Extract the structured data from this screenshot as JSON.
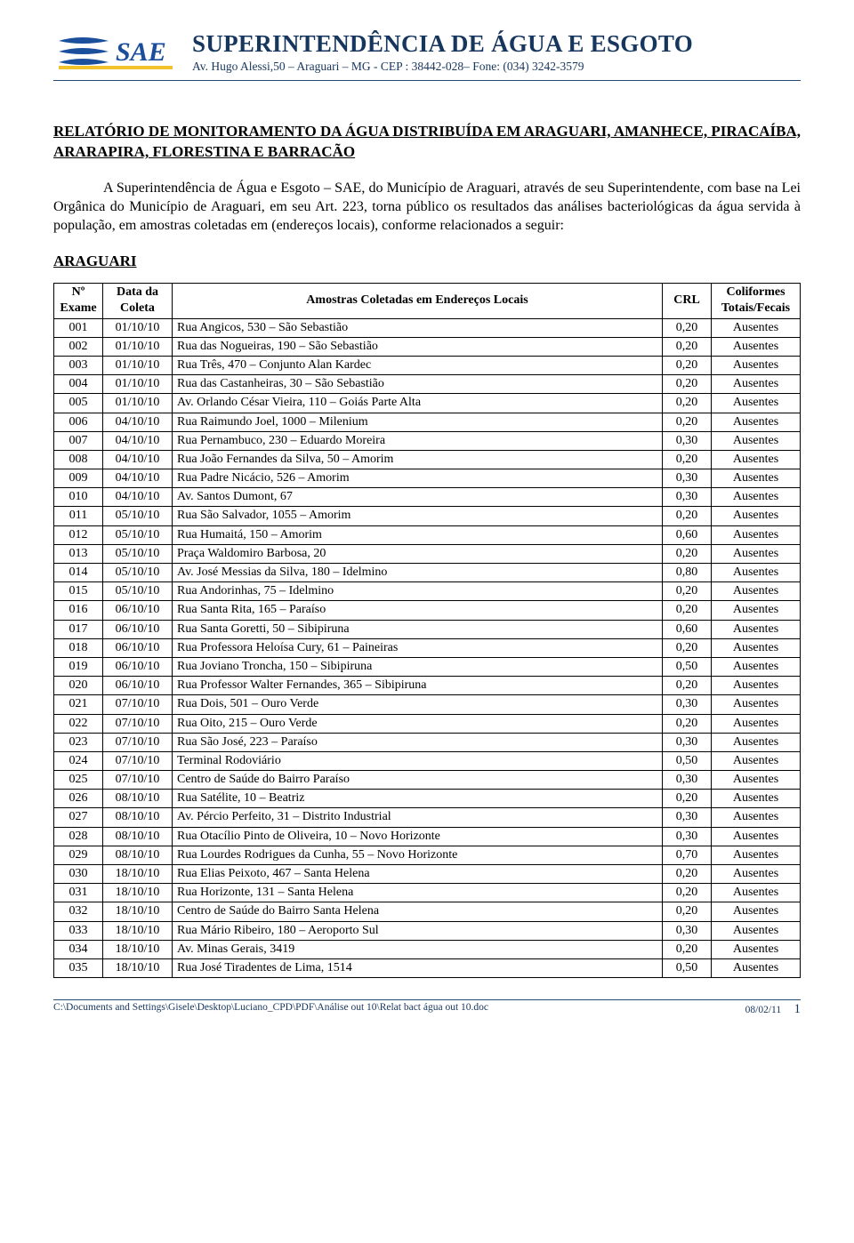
{
  "header": {
    "org_title": "SUPERINTENDÊNCIA DE ÁGUA E ESGOTO",
    "org_addr": "Av. Hugo Alessi,50 – Araguari – MG  -  CEP : 38442-028– Fone: (034) 3242-3579",
    "logo_text": "SAE",
    "logo_colors": {
      "blue": "#1b4f9c",
      "yellow": "#f3c22b",
      "white": "#ffffff"
    }
  },
  "report_title": "RELATÓRIO DE MONITORAMENTO DA ÁGUA DISTRIBUÍDA EM ARAGUARI, AMANHECE, PIRACAÍBA, ARARAPIRA, FLORESTINA E BARRACÃO",
  "body_text": "A Superintendência de Água e Esgoto – SAE, do Município de Araguari, através de seu Superintendente, com base na Lei Orgânica do Município de Araguari, em seu Art. 223, torna público os resultados das análises bacteriológicas da água servida à população, em amostras coletadas em (endereços locais), conforme relacionados a seguir:",
  "section_heading": "ARAGUARI",
  "table": {
    "columns": {
      "n": "Nº Exame",
      "date": "Data da Coleta",
      "addr": "Amostras Coletadas em Endereços Locais",
      "crl": "CRL",
      "colif": "Coliformes Totais/Fecais"
    },
    "rows": [
      [
        "001",
        "01/10/10",
        "Rua Angicos, 530 – São Sebastião",
        "0,20",
        "Ausentes"
      ],
      [
        "002",
        "01/10/10",
        "Rua das Nogueiras, 190 – São Sebastião",
        "0,20",
        "Ausentes"
      ],
      [
        "003",
        "01/10/10",
        "Rua Três, 470 – Conjunto Alan Kardec",
        "0,20",
        "Ausentes"
      ],
      [
        "004",
        "01/10/10",
        "Rua das Castanheiras, 30 – São Sebastião",
        "0,20",
        "Ausentes"
      ],
      [
        "005",
        "01/10/10",
        "Av. Orlando César Vieira, 110 – Goiás Parte Alta",
        "0,20",
        "Ausentes"
      ],
      [
        "006",
        "04/10/10",
        "Rua Raimundo Joel, 1000 – Milenium",
        "0,20",
        "Ausentes"
      ],
      [
        "007",
        "04/10/10",
        "Rua Pernambuco, 230 – Eduardo Moreira",
        "0,30",
        "Ausentes"
      ],
      [
        "008",
        "04/10/10",
        "Rua João Fernandes da Silva, 50 – Amorim",
        "0,20",
        "Ausentes"
      ],
      [
        "009",
        "04/10/10",
        "Rua Padre Nicácio, 526 – Amorim",
        "0,30",
        "Ausentes"
      ],
      [
        "010",
        "04/10/10",
        "Av. Santos Dumont, 67",
        "0,30",
        "Ausentes"
      ],
      [
        "011",
        "05/10/10",
        "Rua São Salvador, 1055 – Amorim",
        "0,20",
        "Ausentes"
      ],
      [
        "012",
        "05/10/10",
        "Rua Humaitá, 150 – Amorim",
        "0,60",
        "Ausentes"
      ],
      [
        "013",
        "05/10/10",
        "Praça Waldomiro Barbosa, 20",
        "0,20",
        "Ausentes"
      ],
      [
        "014",
        "05/10/10",
        "Av. José Messias da Silva, 180 – Idelmino",
        "0,80",
        "Ausentes"
      ],
      [
        "015",
        "05/10/10",
        "Rua Andorinhas, 75 – Idelmino",
        "0,20",
        "Ausentes"
      ],
      [
        "016",
        "06/10/10",
        "Rua Santa Rita, 165 – Paraíso",
        "0,20",
        "Ausentes"
      ],
      [
        "017",
        "06/10/10",
        "Rua Santa Goretti, 50 – Sibipiruna",
        "0,60",
        "Ausentes"
      ],
      [
        "018",
        "06/10/10",
        "Rua Professora Heloísa Cury, 61 – Paineiras",
        "0,20",
        "Ausentes"
      ],
      [
        "019",
        "06/10/10",
        "Rua Joviano Troncha, 150 – Sibipiruna",
        "0,50",
        "Ausentes"
      ],
      [
        "020",
        "06/10/10",
        "Rua Professor Walter Fernandes, 365 – Sibipiruna",
        "0,20",
        "Ausentes"
      ],
      [
        "021",
        "07/10/10",
        "Rua Dois, 501 – Ouro Verde",
        "0,30",
        "Ausentes"
      ],
      [
        "022",
        "07/10/10",
        "Rua Oito, 215 – Ouro Verde",
        "0,20",
        "Ausentes"
      ],
      [
        "023",
        "07/10/10",
        "Rua São José, 223 – Paraíso",
        "0,30",
        "Ausentes"
      ],
      [
        "024",
        "07/10/10",
        "Terminal Rodoviário",
        "0,50",
        "Ausentes"
      ],
      [
        "025",
        "07/10/10",
        "Centro de Saúde do Bairro Paraíso",
        "0,30",
        "Ausentes"
      ],
      [
        "026",
        "08/10/10",
        "Rua Satélite, 10 – Beatriz",
        "0,20",
        "Ausentes"
      ],
      [
        "027",
        "08/10/10",
        "Av. Pércio Perfeito, 31 – Distrito Industrial",
        "0,30",
        "Ausentes"
      ],
      [
        "028",
        "08/10/10",
        "Rua Otacílio Pinto de Oliveira, 10 – Novo Horizonte",
        "0,30",
        "Ausentes"
      ],
      [
        "029",
        "08/10/10",
        "Rua Lourdes Rodrigues da Cunha, 55 – Novo Horizonte",
        "0,70",
        "Ausentes"
      ],
      [
        "030",
        "18/10/10",
        "Rua Elias Peixoto, 467 – Santa Helena",
        "0,20",
        "Ausentes"
      ],
      [
        "031",
        "18/10/10",
        "Rua Horizonte, 131 – Santa Helena",
        "0,20",
        "Ausentes"
      ],
      [
        "032",
        "18/10/10",
        "Centro de Saúde do Bairro Santa Helena",
        "0,20",
        "Ausentes"
      ],
      [
        "033",
        "18/10/10",
        "Rua Mário Ribeiro, 180 – Aeroporto Sul",
        "0,30",
        "Ausentes"
      ],
      [
        "034",
        "18/10/10",
        "Av. Minas Gerais, 3419",
        "0,20",
        "Ausentes"
      ],
      [
        "035",
        "18/10/10",
        "Rua José Tiradentes de Lima, 1514",
        "0,50",
        "Ausentes"
      ]
    ]
  },
  "footer": {
    "path": "C:\\Documents and Settings\\Gisele\\Desktop\\Luciano_CPD\\PDF\\Análise out 10\\Relat bact água out 10.doc",
    "date": "08/02/11",
    "page": "1"
  },
  "colors": {
    "heading_blue": "#17365d",
    "rule_blue": "#2b4a73",
    "text": "#000000",
    "bg": "#ffffff"
  }
}
